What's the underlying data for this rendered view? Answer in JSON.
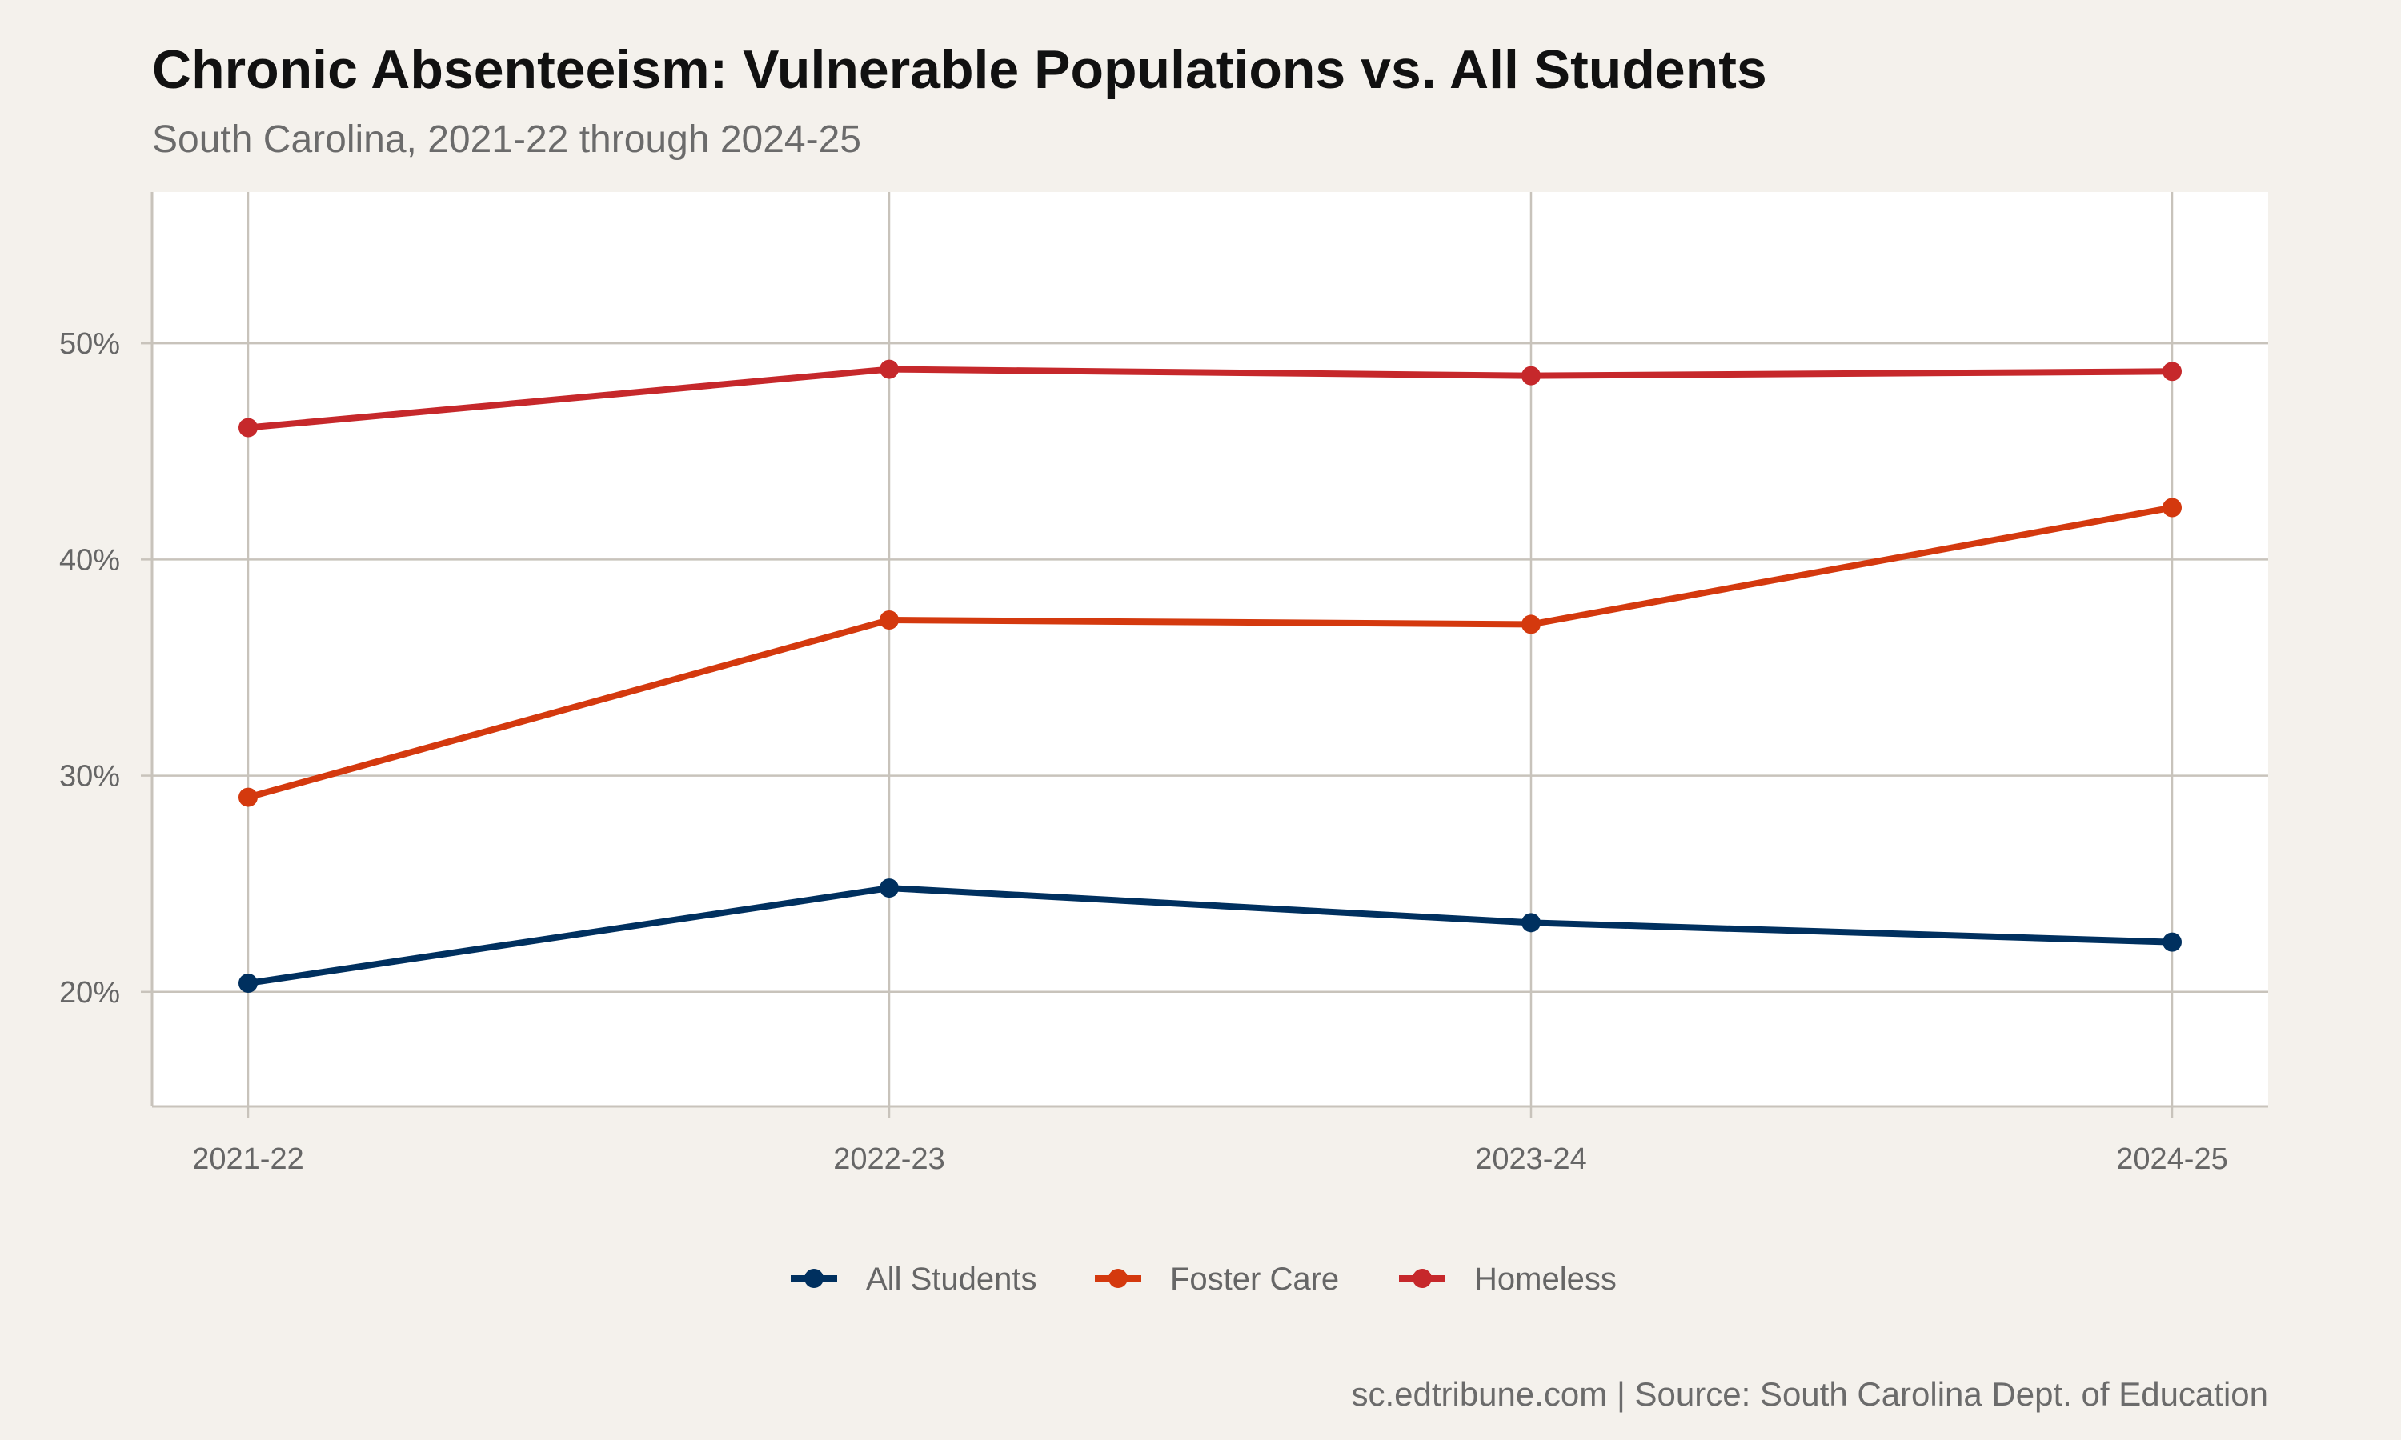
{
  "chart_data": {
    "type": "line",
    "title": "Chronic Absenteeism: Vulnerable Populations vs. All Students",
    "subtitle": "South Carolina, 2021-22 through 2024-25",
    "caption": "sc.edtribune.com | Source: South Carolina Dept. of Education",
    "xlabel": "",
    "ylabel": "",
    "categories": [
      "2021-22",
      "2022-23",
      "2023-24",
      "2024-25"
    ],
    "y_ticks": [
      20,
      30,
      40,
      50
    ],
    "y_tick_labels": [
      "20%",
      "30%",
      "40%",
      "50%"
    ],
    "ylim": [
      14.7,
      57
    ],
    "grid": true,
    "legend_position": "bottom",
    "series": [
      {
        "name": "All Students",
        "color": "#00305f",
        "values": [
          20.4,
          24.8,
          23.2,
          22.3
        ]
      },
      {
        "name": "Foster Care",
        "color": "#d4390e",
        "values": [
          29.0,
          37.2,
          37.0,
          42.4
        ]
      },
      {
        "name": "Homeless",
        "color": "#c6282b",
        "values": [
          46.1,
          48.8,
          48.5,
          48.7
        ]
      }
    ],
    "colors": {
      "background": "#f4f1ec",
      "panel": "#ffffff",
      "grid": "#c8c3bb"
    }
  }
}
